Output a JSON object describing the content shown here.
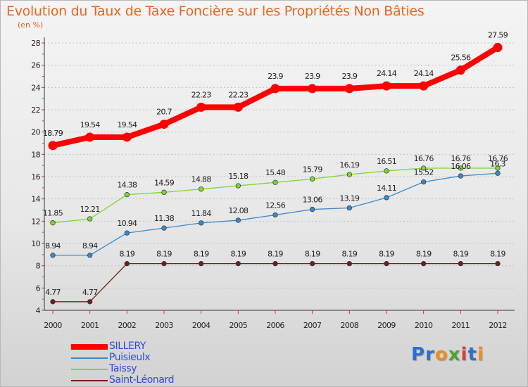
{
  "header": {
    "title": "Evolution du Taux de Taxe Foncière sur les Propriétés Non Bâties",
    "subtitle": "(en %)"
  },
  "logo": {
    "text": "Proxiti",
    "letter_colors": [
      "#2b6fd0",
      "#2b6fd0",
      "#f08c1a",
      "#4aa52e",
      "#e23a30",
      "#2b6fd0",
      "#f08c1a"
    ]
  },
  "chart_data": {
    "type": "line",
    "title": "Evolution du Taux de Taxe Foncière sur les Propriétés Non Bâties",
    "ylabel": "(en %)",
    "x": [
      "2000",
      "2001",
      "2002",
      "2003",
      "2004",
      "2005",
      "2006",
      "2007",
      "2008",
      "2009",
      "2010",
      "2011",
      "2012"
    ],
    "ylim": [
      4,
      28
    ],
    "yticks": [
      4,
      6,
      8,
      10,
      12,
      14,
      16,
      18,
      20,
      22,
      24,
      26,
      28
    ],
    "grid": "horizontal dashed",
    "legend_position": "bottom-left",
    "series": [
      {
        "name": "SILLERY",
        "color": "#ff0000",
        "highlight": true,
        "values": [
          18.79,
          19.54,
          19.54,
          20.7,
          22.23,
          22.23,
          23.9,
          23.9,
          23.9,
          24.14,
          24.14,
          25.56,
          27.59
        ],
        "labels": [
          "18.79",
          "19.54",
          "19.54",
          "20.7",
          "22.23",
          "22.23",
          "23.9",
          "23.9",
          "23.9",
          "24.14",
          "24.14",
          "25.56",
          "27.59"
        ]
      },
      {
        "name": "Puisieulx",
        "color": "#3d88c8",
        "values": [
          8.94,
          8.94,
          10.94,
          11.38,
          11.84,
          12.08,
          12.56,
          13.06,
          13.19,
          14.11,
          15.52,
          16.06,
          16.3
        ],
        "labels": [
          "8.94",
          "8.94",
          "10.94",
          "11.38",
          "11.84",
          "12.08",
          "12.56",
          "13.06",
          "13.19",
          "14.11",
          "15.52",
          "16.06",
          "16.3"
        ]
      },
      {
        "name": "Taissy",
        "color": "#7ed43a",
        "values": [
          11.85,
          12.21,
          14.38,
          14.59,
          14.88,
          15.18,
          15.48,
          15.79,
          16.19,
          16.51,
          16.76,
          16.76,
          16.76
        ],
        "labels": [
          "11.85",
          "12.21",
          "14.38",
          "14.59",
          "14.88",
          "15.18",
          "15.48",
          "15.79",
          "16.19",
          "16.51",
          "16.76",
          "16.76",
          "16.76"
        ]
      },
      {
        "name": "Saint-Léonard",
        "color": "#6e1f1f",
        "values": [
          4.77,
          4.77,
          8.19,
          8.19,
          8.19,
          8.19,
          8.19,
          8.19,
          8.19,
          8.19,
          8.19,
          8.19,
          8.19
        ],
        "labels": [
          "4.77",
          "4.77",
          "8.19",
          "8.19",
          "8.19",
          "8.19",
          "8.19",
          "8.19",
          "8.19",
          "8.19",
          "8.19",
          "8.19",
          "8.19"
        ]
      }
    ]
  }
}
